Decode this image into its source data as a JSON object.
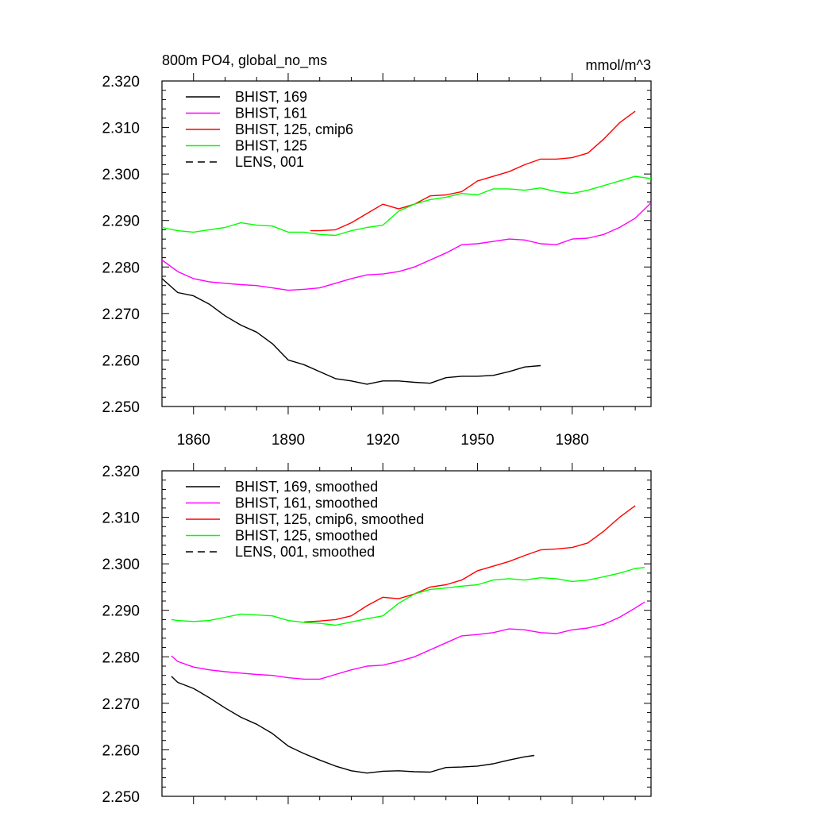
{
  "chart_data": [
    {
      "type": "line",
      "title": "800m PO4, global_no_ms",
      "units": "mmol/m^3",
      "xlabel": "",
      "ylabel": "",
      "xlim": [
        1850,
        2005
      ],
      "ylim": [
        2.25,
        2.32
      ],
      "yticks": [
        "2.250",
        "2.260",
        "2.270",
        "2.280",
        "2.290",
        "2.300",
        "2.310",
        "2.320"
      ],
      "xticks": [
        "1860",
        "1890",
        "1920",
        "1950",
        "1980"
      ],
      "legend_position": "top-left",
      "series": [
        {
          "name": "BHIST, 169",
          "color": "#000000",
          "dash": "solid",
          "x": [
            1850,
            1855,
            1860,
            1865,
            1870,
            1875,
            1880,
            1885,
            1890,
            1895,
            1900,
            1905,
            1910,
            1915,
            1920,
            1925,
            1930,
            1935,
            1940,
            1945,
            1950,
            1955,
            1960,
            1965,
            1970
          ],
          "y": [
            2.2775,
            2.2745,
            2.2738,
            2.272,
            2.2695,
            2.2675,
            2.266,
            2.2635,
            2.26,
            2.259,
            2.2575,
            2.256,
            2.2555,
            2.2548,
            2.2555,
            2.2555,
            2.2552,
            2.255,
            2.2562,
            2.2565,
            2.2565,
            2.2567,
            2.2575,
            2.2585,
            2.2588
          ]
        },
        {
          "name": "BHIST, 161",
          "color": "#ff00ff",
          "dash": "solid",
          "x": [
            1850,
            1855,
            1860,
            1865,
            1870,
            1875,
            1880,
            1885,
            1890,
            1895,
            1900,
            1905,
            1910,
            1915,
            1920,
            1925,
            1930,
            1935,
            1940,
            1945,
            1950,
            1955,
            1960,
            1965,
            1970,
            1975,
            1980,
            1985,
            1990,
            1995,
            2000,
            2005
          ],
          "y": [
            2.2815,
            2.279,
            2.2775,
            2.2768,
            2.2765,
            2.2762,
            2.276,
            2.2755,
            2.275,
            2.2752,
            2.2755,
            2.2765,
            2.2775,
            2.2783,
            2.2785,
            2.279,
            2.28,
            2.2815,
            2.283,
            2.2848,
            2.285,
            2.2855,
            2.286,
            2.2858,
            2.285,
            2.2848,
            2.286,
            2.2862,
            2.287,
            2.2885,
            2.2905,
            2.2938
          ]
        },
        {
          "name": "BHIST, 125, cmip6",
          "color": "#ff0000",
          "dash": "solid",
          "x": [
            1897,
            1900,
            1905,
            1910,
            1915,
            1920,
            1925,
            1930,
            1935,
            1940,
            1945,
            1950,
            1955,
            1960,
            1965,
            1970,
            1975,
            1980,
            1985,
            1990,
            1995,
            2000
          ],
          "y": [
            2.2878,
            2.2878,
            2.288,
            2.2895,
            2.2915,
            2.2935,
            2.2925,
            2.2935,
            2.2953,
            2.2955,
            2.2962,
            2.2985,
            2.2995,
            2.3005,
            2.302,
            2.3032,
            2.3032,
            2.3035,
            2.3045,
            2.3075,
            2.311,
            2.3135
          ]
        },
        {
          "name": "BHIST, 125",
          "color": "#00ff00",
          "dash": "solid",
          "x": [
            1850,
            1855,
            1860,
            1865,
            1870,
            1875,
            1880,
            1885,
            1890,
            1895,
            1900,
            1905,
            1910,
            1915,
            1920,
            1925,
            1930,
            1935,
            1940,
            1945,
            1950,
            1955,
            1960,
            1965,
            1970,
            1975,
            1980,
            1985,
            1990,
            1995,
            2000,
            2005
          ],
          "y": [
            2.2885,
            2.2878,
            2.2875,
            2.288,
            2.2885,
            2.2895,
            2.289,
            2.2888,
            2.2875,
            2.2875,
            2.287,
            2.2868,
            2.2878,
            2.2885,
            2.289,
            2.292,
            2.2935,
            2.2945,
            2.295,
            2.2958,
            2.2955,
            2.2968,
            2.2968,
            2.2965,
            2.297,
            2.2962,
            2.2958,
            2.2965,
            2.2975,
            2.2985,
            2.2995,
            2.299
          ]
        },
        {
          "name": "LENS, 001",
          "color": "#000000",
          "dash": "dashed",
          "x": [],
          "y": []
        }
      ]
    },
    {
      "type": "line",
      "title": "",
      "xlabel": "",
      "ylabel": "",
      "xlim": [
        1850,
        2005
      ],
      "ylim": [
        2.25,
        2.32
      ],
      "yticks": [
        "2.250",
        "2.260",
        "2.270",
        "2.280",
        "2.290",
        "2.300",
        "2.310",
        "2.320"
      ],
      "legend_position": "top-left",
      "series": [
        {
          "name": "BHIST, 169, smoothed",
          "color": "#000000",
          "dash": "solid",
          "x": [
            1853,
            1855,
            1860,
            1865,
            1870,
            1875,
            1880,
            1885,
            1890,
            1895,
            1900,
            1905,
            1910,
            1915,
            1920,
            1925,
            1930,
            1935,
            1940,
            1945,
            1950,
            1955,
            1960,
            1965,
            1968
          ],
          "y": [
            2.2758,
            2.2745,
            2.2732,
            2.2712,
            2.269,
            2.267,
            2.2655,
            2.2635,
            2.2608,
            2.2592,
            2.2578,
            2.2565,
            2.2555,
            2.255,
            2.2554,
            2.2555,
            2.2553,
            2.2552,
            2.2562,
            2.2563,
            2.2565,
            2.257,
            2.2578,
            2.2585,
            2.2588
          ]
        },
        {
          "name": "BHIST, 161, smoothed",
          "color": "#ff00ff",
          "dash": "solid",
          "x": [
            1853,
            1855,
            1860,
            1865,
            1870,
            1875,
            1880,
            1885,
            1890,
            1895,
            1900,
            1905,
            1910,
            1915,
            1920,
            1925,
            1930,
            1935,
            1940,
            1945,
            1950,
            1955,
            1960,
            1965,
            1970,
            1975,
            1980,
            1985,
            1990,
            1995,
            2000,
            2003
          ],
          "y": [
            2.2802,
            2.279,
            2.2778,
            2.2772,
            2.2768,
            2.2765,
            2.2762,
            2.276,
            2.2755,
            2.2752,
            2.2752,
            2.2762,
            2.2772,
            2.278,
            2.2782,
            2.279,
            2.28,
            2.2815,
            2.283,
            2.2845,
            2.2848,
            2.2852,
            2.286,
            2.2858,
            2.2852,
            2.285,
            2.2858,
            2.2862,
            2.287,
            2.2885,
            2.2905,
            2.2918
          ]
        },
        {
          "name": "BHIST, 125, cmip6, smoothed",
          "color": "#ff0000",
          "dash": "solid",
          "x": [
            1895,
            1900,
            1905,
            1910,
            1915,
            1920,
            1925,
            1930,
            1935,
            1940,
            1945,
            1950,
            1955,
            1960,
            1965,
            1970,
            1975,
            1980,
            1985,
            1990,
            1995,
            2000
          ],
          "y": [
            2.2875,
            2.2877,
            2.288,
            2.2888,
            2.291,
            2.2928,
            2.2925,
            2.2935,
            2.295,
            2.2955,
            2.2965,
            2.2985,
            2.2995,
            2.3005,
            2.3018,
            2.303,
            2.3032,
            2.3035,
            2.3045,
            2.307,
            2.31,
            2.3125
          ]
        },
        {
          "name": "BHIST, 125, smoothed",
          "color": "#00ff00",
          "dash": "solid",
          "x": [
            1853,
            1855,
            1860,
            1865,
            1870,
            1875,
            1880,
            1885,
            1890,
            1895,
            1900,
            1905,
            1910,
            1915,
            1920,
            1925,
            1930,
            1935,
            1940,
            1945,
            1950,
            1955,
            1960,
            1965,
            1970,
            1975,
            1980,
            1985,
            1990,
            1995,
            2000,
            2003
          ],
          "y": [
            2.288,
            2.2878,
            2.2876,
            2.2878,
            2.2885,
            2.2892,
            2.289,
            2.2888,
            2.2878,
            2.2874,
            2.2872,
            2.2868,
            2.2875,
            2.2882,
            2.2888,
            2.2915,
            2.2935,
            2.2945,
            2.2948,
            2.2952,
            2.2955,
            2.2965,
            2.2968,
            2.2965,
            2.297,
            2.2968,
            2.2962,
            2.2965,
            2.2972,
            2.298,
            2.299,
            2.2992
          ]
        },
        {
          "name": "LENS, 001, smoothed",
          "color": "#000000",
          "dash": "dashed",
          "x": [],
          "y": []
        }
      ]
    }
  ]
}
